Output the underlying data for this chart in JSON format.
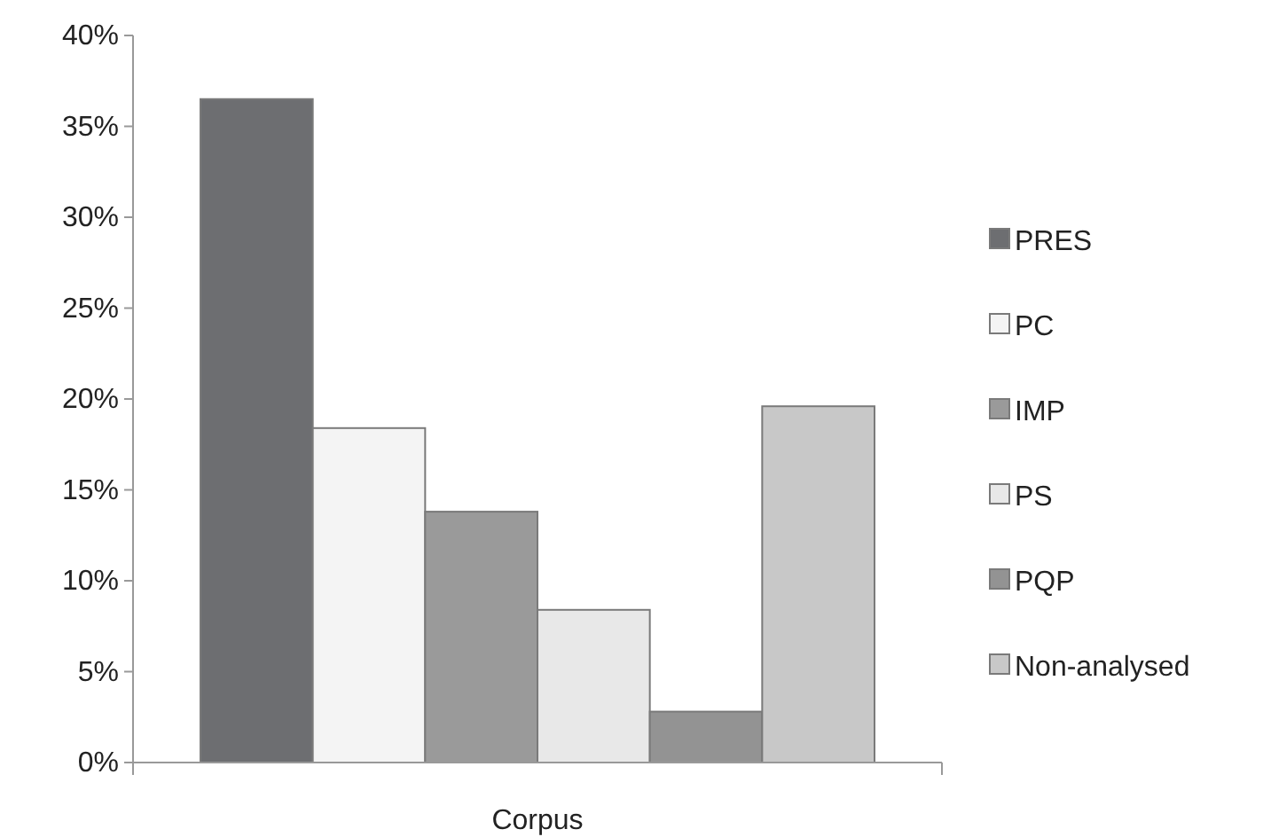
{
  "chart_data": {
    "type": "bar",
    "categories": [
      "Corpus"
    ],
    "series": [
      {
        "name": "PRES",
        "color": "#6d6e71",
        "values": [
          36.5
        ]
      },
      {
        "name": "PC",
        "color": "#f4f4f4",
        "values": [
          18.4
        ]
      },
      {
        "name": "IMP",
        "color": "#9a9a9a",
        "values": [
          13.8
        ]
      },
      {
        "name": "PS",
        "color": "#e8e8e8",
        "values": [
          8.4
        ]
      },
      {
        "name": "PQP",
        "color": "#939393",
        "values": [
          2.8
        ]
      },
      {
        "name": "Non-analysed",
        "color": "#c8c8c8",
        "values": [
          19.6
        ]
      }
    ],
    "ylim": [
      0,
      40
    ],
    "yticks": [
      {
        "value": 0,
        "label": "0%"
      },
      {
        "value": 5,
        "label": "5%"
      },
      {
        "value": 10,
        "label": "10%"
      },
      {
        "value": 15,
        "label": "15%"
      },
      {
        "value": 20,
        "label": "20%"
      },
      {
        "value": 25,
        "label": "25%"
      },
      {
        "value": 30,
        "label": "30%"
      },
      {
        "value": 35,
        "label": "35%"
      },
      {
        "value": 40,
        "label": "40%"
      }
    ],
    "grid": false,
    "legend": "right"
  }
}
